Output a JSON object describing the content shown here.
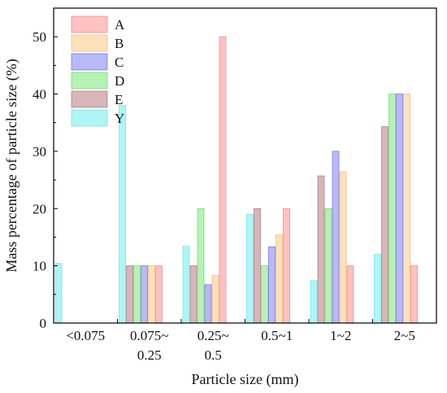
{
  "chart_data": {
    "type": "bar",
    "xlabel": "Particle size (mm)",
    "ylabel": "Mass percentage of particle size (%)",
    "ylim": [
      0,
      55
    ],
    "yticks": [
      0,
      10,
      20,
      30,
      40,
      50
    ],
    "grid": false,
    "legend_position": "top-left",
    "categories": [
      [
        "<0.075"
      ],
      [
        "0.075~",
        "0.25"
      ],
      [
        "0.25~",
        "0.5"
      ],
      [
        "0.5~1"
      ],
      [
        "1~2"
      ],
      [
        "2~5"
      ]
    ],
    "series": [
      {
        "name": "Y",
        "color": "#aef5f5",
        "stroke": "#7fe3e3",
        "values": [
          10.4,
          38,
          13.4,
          19,
          7.4,
          12
        ]
      },
      {
        "name": "E",
        "color": "#d7b5b8",
        "stroke": "#b08588",
        "values": [
          0,
          10,
          10,
          20,
          25.7,
          34.3
        ]
      },
      {
        "name": "D",
        "color": "#b5f2b3",
        "stroke": "#7dd97b",
        "values": [
          0,
          10,
          20,
          10,
          20,
          40
        ]
      },
      {
        "name": "C",
        "color": "#b9b9f5",
        "stroke": "#7b7be6",
        "values": [
          0,
          10,
          6.7,
          13.3,
          30,
          40
        ]
      },
      {
        "name": "B",
        "color": "#ffe0bd",
        "stroke": "#f3bf84",
        "values": [
          0,
          10,
          8.3,
          15.4,
          26.4,
          40
        ]
      },
      {
        "name": "A",
        "color": "#ffc1c1",
        "stroke": "#ee8f8f",
        "values": [
          0,
          10,
          50,
          20,
          10,
          10
        ]
      }
    ],
    "legend_order": [
      "A",
      "B",
      "C",
      "D",
      "E",
      "Y"
    ]
  }
}
